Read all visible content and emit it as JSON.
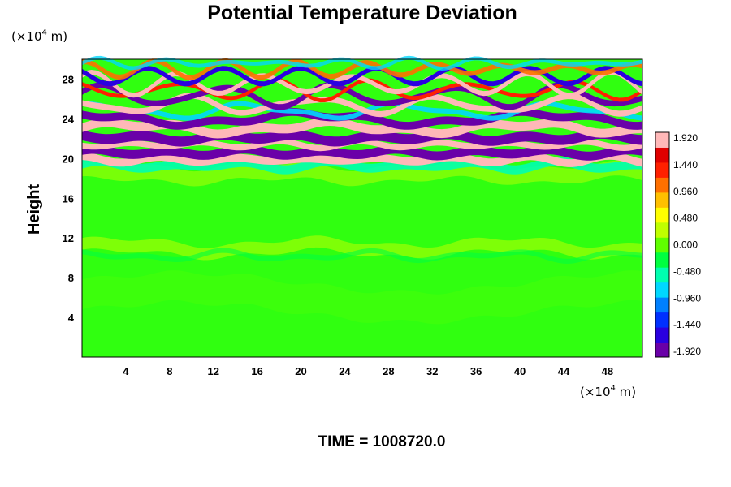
{
  "chart_data": {
    "type": "heatmap",
    "title": "Potential Temperature Deviation",
    "ylabel": "Height",
    "xlabel": "",
    "x_unit_prefix": "(×10",
    "x_unit_exp": "4",
    "x_unit_suffix": " m)",
    "y_unit_prefix": "(×10",
    "y_unit_exp": "4",
    "y_unit_suffix": " m)",
    "xlim": [
      0,
      51.2
    ],
    "ylim": [
      0,
      30
    ],
    "x_ticks": [
      "4",
      "8",
      "12",
      "16",
      "20",
      "24",
      "28",
      "32",
      "36",
      "40",
      "44",
      "48"
    ],
    "y_ticks": [
      "4",
      "8",
      "12",
      "16",
      "20",
      "24",
      "28"
    ],
    "colorbar": {
      "min": -1.92,
      "max": 1.92,
      "labels": [
        "1.920",
        "1.440",
        "0.960",
        "0.480",
        "0.000",
        "-0.480",
        "-0.960",
        "-1.440",
        "-1.920"
      ]
    },
    "footer": "TIME = 1008720.0"
  },
  "colors": {
    "scale": [
      "#6a00a8",
      "#2a00e0",
      "#0030ff",
      "#0080ff",
      "#00d8ff",
      "#00ffb0",
      "#00ff40",
      "#60ff00",
      "#c0ff00",
      "#ffff00",
      "#ffc000",
      "#ff7000",
      "#ff2000",
      "#e00000",
      "#ffb8b8"
    ]
  }
}
